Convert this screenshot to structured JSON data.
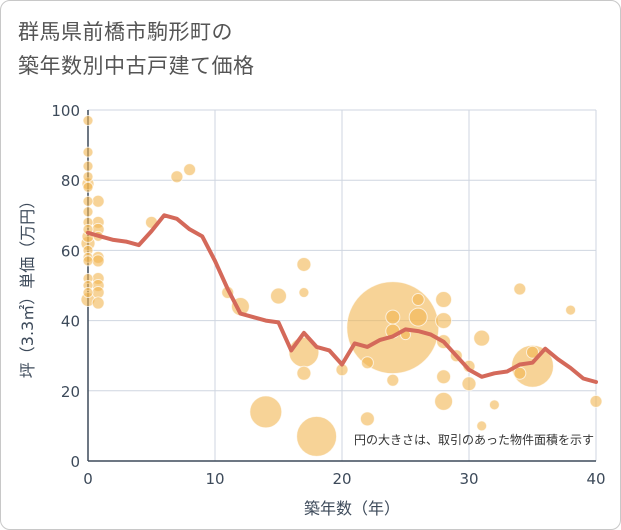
{
  "chart_data": {
    "type": "scatter",
    "title_lines": [
      "群馬県前橋市駒形町の",
      "築年数別中古戸建て価格"
    ],
    "xlabel": "築年数（年）",
    "ylabel": "坪（3.3㎡）単価（万円）",
    "xlim": [
      0,
      40
    ],
    "ylim": [
      0,
      100
    ],
    "xticks": [
      0,
      10,
      20,
      30,
      40
    ],
    "yticks": [
      0,
      20,
      40,
      60,
      80,
      100
    ],
    "note": "円の大きさは、取引のあった物件面積を示す",
    "colors": {
      "bubble": "#f2b552",
      "line": "#d4695a",
      "grid": "#cfd6e0",
      "axis": "#3d4a5a"
    },
    "bubbles": [
      {
        "x": 0,
        "y": 97,
        "s": 5
      },
      {
        "x": 0,
        "y": 88,
        "s": 5
      },
      {
        "x": 0,
        "y": 84,
        "s": 5
      },
      {
        "x": 0,
        "y": 81,
        "s": 5
      },
      {
        "x": 0,
        "y": 79,
        "s": 6
      },
      {
        "x": 0,
        "y": 78,
        "s": 5
      },
      {
        "x": 0,
        "y": 74,
        "s": 5
      },
      {
        "x": 0,
        "y": 71,
        "s": 5
      },
      {
        "x": 0,
        "y": 68,
        "s": 5
      },
      {
        "x": 0,
        "y": 66,
        "s": 5
      },
      {
        "x": 0,
        "y": 64,
        "s": 6
      },
      {
        "x": 0,
        "y": 62,
        "s": 7
      },
      {
        "x": 0,
        "y": 60,
        "s": 5
      },
      {
        "x": 0,
        "y": 58,
        "s": 5
      },
      {
        "x": 0,
        "y": 57,
        "s": 5
      },
      {
        "x": 0,
        "y": 52,
        "s": 5
      },
      {
        "x": 0,
        "y": 50,
        "s": 5
      },
      {
        "x": 0,
        "y": 48,
        "s": 5
      },
      {
        "x": 0,
        "y": 46,
        "s": 7
      },
      {
        "x": 0.8,
        "y": 74,
        "s": 6
      },
      {
        "x": 0.8,
        "y": 68,
        "s": 6
      },
      {
        "x": 0.8,
        "y": 66,
        "s": 6
      },
      {
        "x": 0.8,
        "y": 64,
        "s": 5
      },
      {
        "x": 0.8,
        "y": 58,
        "s": 6
      },
      {
        "x": 0.8,
        "y": 57,
        "s": 6
      },
      {
        "x": 0.8,
        "y": 52,
        "s": 6
      },
      {
        "x": 0.8,
        "y": 50,
        "s": 6
      },
      {
        "x": 0.8,
        "y": 48,
        "s": 6
      },
      {
        "x": 0.8,
        "y": 45,
        "s": 6
      },
      {
        "x": 5,
        "y": 68,
        "s": 6
      },
      {
        "x": 7,
        "y": 81,
        "s": 6
      },
      {
        "x": 8,
        "y": 83,
        "s": 6
      },
      {
        "x": 11,
        "y": 48,
        "s": 6
      },
      {
        "x": 12,
        "y": 44,
        "s": 9
      },
      {
        "x": 14,
        "y": 14,
        "s": 16
      },
      {
        "x": 15,
        "y": 47,
        "s": 8
      },
      {
        "x": 17,
        "y": 56,
        "s": 7
      },
      {
        "x": 17,
        "y": 48,
        "s": 5
      },
      {
        "x": 17,
        "y": 31,
        "s": 15
      },
      {
        "x": 17,
        "y": 25,
        "s": 7
      },
      {
        "x": 18,
        "y": 7,
        "s": 20
      },
      {
        "x": 20,
        "y": 26,
        "s": 6
      },
      {
        "x": 22,
        "y": 28,
        "s": 6
      },
      {
        "x": 22,
        "y": 12,
        "s": 7
      },
      {
        "x": 24,
        "y": 38,
        "s": 46
      },
      {
        "x": 24,
        "y": 41,
        "s": 7
      },
      {
        "x": 24,
        "y": 37,
        "s": 7
      },
      {
        "x": 24,
        "y": 23,
        "s": 6
      },
      {
        "x": 25,
        "y": 36,
        "s": 5
      },
      {
        "x": 26,
        "y": 46,
        "s": 6
      },
      {
        "x": 26,
        "y": 41,
        "s": 9
      },
      {
        "x": 28,
        "y": 46,
        "s": 8
      },
      {
        "x": 28,
        "y": 40,
        "s": 8
      },
      {
        "x": 28,
        "y": 34,
        "s": 7
      },
      {
        "x": 28,
        "y": 24,
        "s": 7
      },
      {
        "x": 28,
        "y": 17,
        "s": 9
      },
      {
        "x": 29,
        "y": 30,
        "s": 6
      },
      {
        "x": 30,
        "y": 27,
        "s": 6
      },
      {
        "x": 30,
        "y": 22,
        "s": 7
      },
      {
        "x": 31,
        "y": 35,
        "s": 8
      },
      {
        "x": 31,
        "y": 10,
        "s": 5
      },
      {
        "x": 32,
        "y": 16,
        "s": 5
      },
      {
        "x": 34,
        "y": 49,
        "s": 6
      },
      {
        "x": 34,
        "y": 25,
        "s": 6
      },
      {
        "x": 35,
        "y": 27,
        "s": 21
      },
      {
        "x": 35,
        "y": 31,
        "s": 6
      },
      {
        "x": 38,
        "y": 43,
        "s": 5
      },
      {
        "x": 40,
        "y": 17,
        "s": 6
      }
    ],
    "line": [
      {
        "x": 0,
        "y": 65
      },
      {
        "x": 1,
        "y": 64
      },
      {
        "x": 2,
        "y": 63
      },
      {
        "x": 3,
        "y": 62.5
      },
      {
        "x": 4,
        "y": 61.5
      },
      {
        "x": 5,
        "y": 65.5
      },
      {
        "x": 6,
        "y": 70
      },
      {
        "x": 7,
        "y": 69
      },
      {
        "x": 8,
        "y": 66
      },
      {
        "x": 9,
        "y": 64
      },
      {
        "x": 10,
        "y": 57
      },
      {
        "x": 11,
        "y": 49
      },
      {
        "x": 12,
        "y": 42
      },
      {
        "x": 13,
        "y": 41
      },
      {
        "x": 14,
        "y": 40
      },
      {
        "x": 15,
        "y": 39.5
      },
      {
        "x": 16,
        "y": 31.5
      },
      {
        "x": 17,
        "y": 36.5
      },
      {
        "x": 18,
        "y": 32.5
      },
      {
        "x": 19,
        "y": 31.5
      },
      {
        "x": 20,
        "y": 27.5
      },
      {
        "x": 21,
        "y": 33.5
      },
      {
        "x": 22,
        "y": 32.5
      },
      {
        "x": 23,
        "y": 34.5
      },
      {
        "x": 24,
        "y": 35.5
      },
      {
        "x": 25,
        "y": 37.5
      },
      {
        "x": 26,
        "y": 37
      },
      {
        "x": 27,
        "y": 36
      },
      {
        "x": 28,
        "y": 34
      },
      {
        "x": 29,
        "y": 30
      },
      {
        "x": 30,
        "y": 26
      },
      {
        "x": 31,
        "y": 24
      },
      {
        "x": 32,
        "y": 25
      },
      {
        "x": 33,
        "y": 25.5
      },
      {
        "x": 34,
        "y": 27.5
      },
      {
        "x": 35,
        "y": 28
      },
      {
        "x": 36,
        "y": 32
      },
      {
        "x": 37,
        "y": 29
      },
      {
        "x": 38,
        "y": 26.5
      },
      {
        "x": 39,
        "y": 23.5
      },
      {
        "x": 40,
        "y": 22.5
      }
    ]
  }
}
